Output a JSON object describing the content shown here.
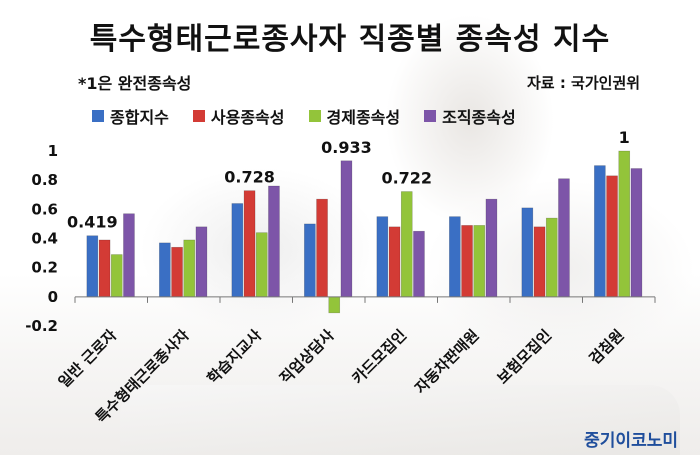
{
  "title": "특수형태근로종사자 직종별 종속성 지수",
  "note": "*1은 완전종속성",
  "source": "자료 : 국가인권위",
  "brand": "중기이코노미",
  "chart_data": {
    "type": "bar",
    "categories": [
      "일반 근로자",
      "특수형태근로종사자",
      "학습지교사",
      "직업상담사",
      "카드모집인",
      "자동차판매원",
      "보험모집인",
      "검침원"
    ],
    "series": [
      {
        "name": "종합지수",
        "color": "#3a6fc4",
        "values": [
          0.419,
          0.37,
          0.64,
          0.5,
          0.55,
          0.55,
          0.61,
          0.9
        ]
      },
      {
        "name": "사용종속성",
        "color": "#d33b35",
        "values": [
          0.39,
          0.34,
          0.728,
          0.67,
          0.48,
          0.49,
          0.48,
          0.83
        ]
      },
      {
        "name": "경제종속성",
        "color": "#93c43a",
        "values": [
          0.29,
          0.39,
          0.44,
          -0.11,
          0.722,
          0.49,
          0.54,
          1.0
        ]
      },
      {
        "name": "조직종속성",
        "color": "#7d55a8",
        "values": [
          0.57,
          0.48,
          0.76,
          0.933,
          0.45,
          0.67,
          0.81,
          0.88
        ]
      }
    ],
    "ylim": [
      -0.2,
      1.0
    ],
    "yticks": [
      -0.2,
      0,
      0.2,
      0.4,
      0.6,
      0.8,
      1
    ],
    "ytick_labels": [
      "-0.2",
      "0",
      "0.2",
      "0.4",
      "0.6",
      "0.8",
      "1"
    ],
    "data_labels": [
      {
        "category": 0,
        "series": 0,
        "text": "0.419"
      },
      {
        "category": 2,
        "series": 1,
        "text": "0.728"
      },
      {
        "category": 3,
        "series": 3,
        "text": "0.933"
      },
      {
        "category": 4,
        "series": 2,
        "text": "0.722"
      },
      {
        "category": 7,
        "series": 2,
        "text": "1"
      }
    ],
    "legend_position": "top"
  }
}
